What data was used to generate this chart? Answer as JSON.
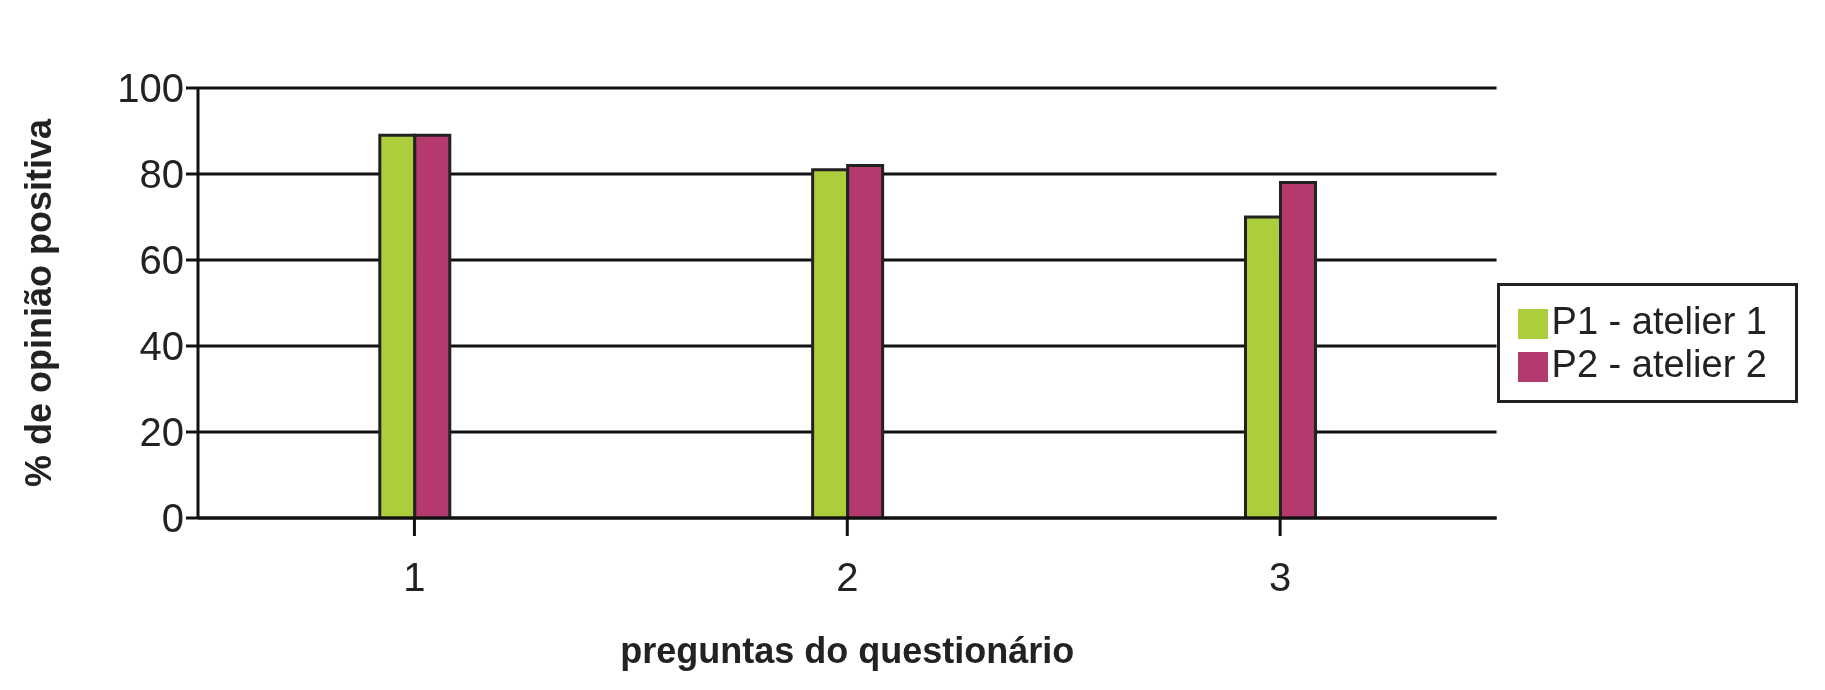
{
  "chart_data": {
    "type": "bar",
    "xlabel": "preguntas do questionário",
    "ylabel": "% de opinião positiva",
    "categories": [
      "1",
      "2",
      "3"
    ],
    "series": [
      {
        "name": "P1 - atelier 1",
        "color": "#acce3d",
        "values": [
          89,
          81,
          70
        ]
      },
      {
        "name": "P2 -  atelier 2",
        "color": "#b5386f",
        "values": [
          89,
          82,
          78
        ]
      }
    ],
    "ylim": [
      0,
      100
    ],
    "yticks": [
      0,
      20,
      40,
      60,
      80,
      100
    ],
    "grid": "y",
    "legend": "right"
  }
}
